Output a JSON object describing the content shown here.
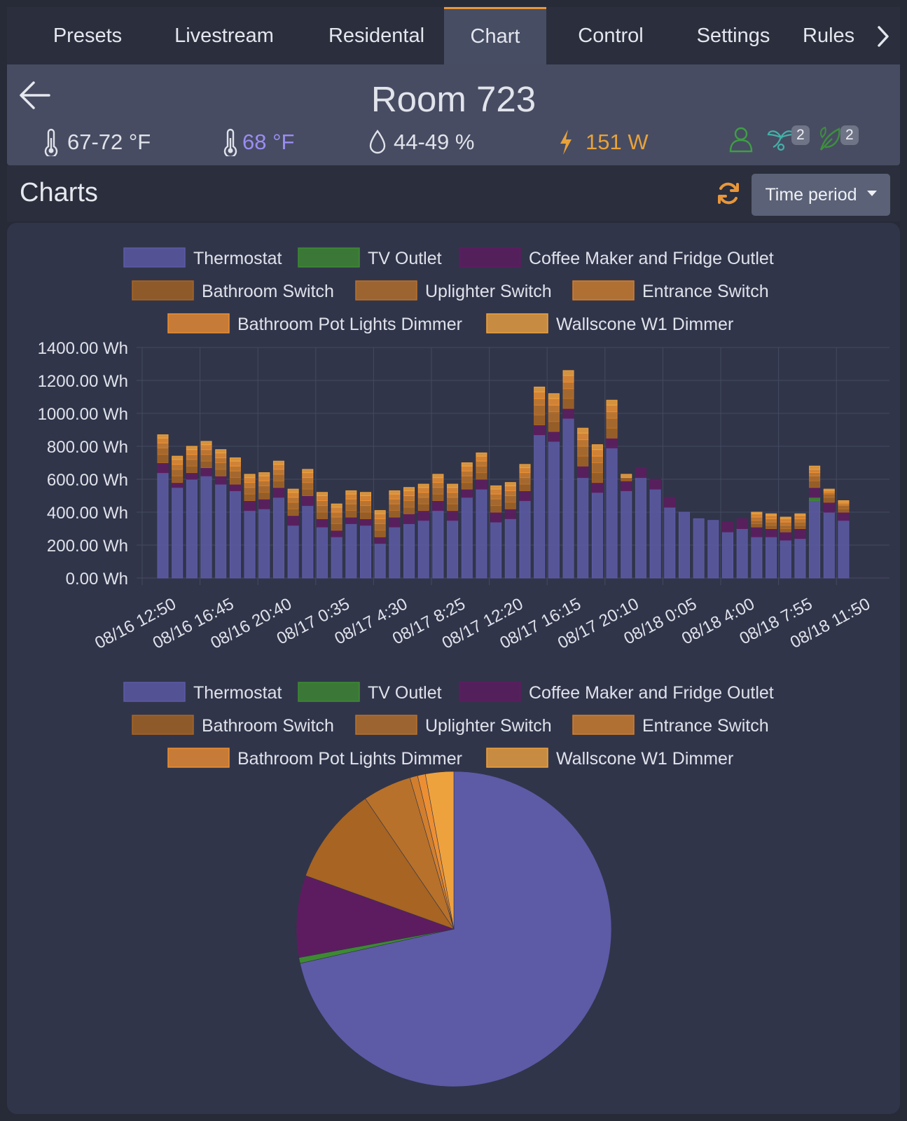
{
  "tabs": [
    {
      "label": "Presets",
      "active": false
    },
    {
      "label": "Livestream",
      "active": false
    },
    {
      "label": "Residental",
      "active": false
    },
    {
      "label": "Chart",
      "active": true
    },
    {
      "label": "Control",
      "active": false
    },
    {
      "label": "Settings",
      "active": false
    },
    {
      "label": "Rules",
      "active": false
    }
  ],
  "room": {
    "title": "Room 723",
    "temp_range": "67-72 °F",
    "setpoint": "68 °F",
    "humidity": "44-49 %",
    "power": "151 W",
    "fan_count": "2",
    "plant_count": "2"
  },
  "charts_header": {
    "title": "Charts",
    "time_period_label": "Time period"
  },
  "colors": {
    "accent": "#e8963a",
    "setpoint": "#9b8cf2",
    "power": "#e8a23a",
    "person_icon": "#3f9e45",
    "fan_icon": "#43b0a8",
    "plant_icon": "#3e8e3e"
  },
  "legend": [
    {
      "name": "Thermostat",
      "color": "#5d5aa6"
    },
    {
      "name": "TV Outlet",
      "color": "#3e8a32"
    },
    {
      "name": "Coffee Maker and Fridge Outlet",
      "color": "#5e1c60"
    },
    {
      "name": "Bathroom Switch",
      "color": "#a76422"
    },
    {
      "name": "Uplighter Switch",
      "color": "#b8712a"
    },
    {
      "name": "Entrance Switch",
      "color": "#d17f2e"
    },
    {
      "name": "Bathroom Pot Lights Dimmer",
      "color": "#ec8f33"
    },
    {
      "name": "Wallscone W1 Dimmer",
      "color": "#eea23e"
    }
  ],
  "chart_data": [
    {
      "type": "bar",
      "stacked": true,
      "y_tick_labels": [
        "0.00 Wh",
        "200.00 Wh",
        "400.00 Wh",
        "600.00 Wh",
        "800.00 Wh",
        "1000.00 Wh",
        "1200.00 Wh",
        "1400.00 Wh"
      ],
      "ylim": [
        0,
        1400
      ],
      "x_tick_labels": [
        "08/16 12:50",
        "08/16 16:45",
        "08/16 20:40",
        "08/17 0:35",
        "08/17 4:30",
        "08/17 8:25",
        "08/17 12:20",
        "08/17 16:15",
        "08/17 20:10",
        "08/18 0:05",
        "08/18 4:00",
        "08/18 7:55",
        "08/18 11:50"
      ],
      "grid": true,
      "legend_position": "top",
      "series": [
        {
          "name": "Thermostat",
          "values": [
            640,
            550,
            600,
            620,
            570,
            530,
            410,
            420,
            490,
            320,
            440,
            310,
            250,
            330,
            320,
            210,
            310,
            330,
            350,
            410,
            350,
            490,
            540,
            340,
            360,
            470,
            870,
            830,
            970,
            610,
            520,
            790,
            530,
            610,
            540,
            430,
            400,
            360,
            350,
            280,
            300,
            250,
            250,
            230,
            240,
            470,
            400,
            350
          ]
        },
        {
          "name": "TV Outlet",
          "values": [
            0,
            0,
            0,
            0,
            0,
            0,
            0,
            0,
            0,
            0,
            0,
            0,
            0,
            0,
            0,
            0,
            0,
            0,
            0,
            0,
            0,
            0,
            0,
            0,
            0,
            0,
            0,
            0,
            0,
            0,
            0,
            0,
            0,
            0,
            0,
            0,
            0,
            0,
            0,
            0,
            0,
            0,
            0,
            0,
            0,
            20,
            0,
            0
          ]
        },
        {
          "name": "Coffee Maker and Fridge Outlet",
          "values": [
            60,
            30,
            40,
            50,
            50,
            40,
            60,
            60,
            60,
            60,
            60,
            50,
            40,
            40,
            40,
            40,
            60,
            60,
            60,
            60,
            60,
            50,
            60,
            60,
            60,
            60,
            60,
            60,
            60,
            70,
            60,
            60,
            60,
            60,
            60,
            60,
            0,
            0,
            0,
            60,
            60,
            60,
            50,
            50,
            60,
            60,
            60,
            50
          ]
        },
        {
          "name": "Bathroom Switch",
          "values": [
            50,
            40,
            40,
            40,
            40,
            40,
            40,
            40,
            40,
            40,
            40,
            40,
            40,
            40,
            40,
            40,
            40,
            40,
            40,
            40,
            40,
            40,
            40,
            40,
            40,
            40,
            60,
            60,
            60,
            60,
            60,
            60,
            20,
            0,
            0,
            0,
            0,
            0,
            0,
            0,
            0,
            20,
            20,
            20,
            20,
            40,
            30,
            20
          ]
        },
        {
          "name": "Uplighter Switch",
          "values": [
            40,
            40,
            40,
            40,
            40,
            40,
            40,
            40,
            40,
            40,
            40,
            40,
            40,
            40,
            40,
            40,
            40,
            40,
            40,
            40,
            40,
            40,
            40,
            40,
            40,
            40,
            60,
            60,
            60,
            60,
            60,
            60,
            0,
            0,
            0,
            0,
            0,
            0,
            0,
            0,
            0,
            20,
            20,
            20,
            20,
            30,
            20,
            20
          ]
        },
        {
          "name": "Entrance Switch",
          "values": [
            30,
            30,
            30,
            30,
            30,
            30,
            30,
            30,
            30,
            30,
            30,
            30,
            30,
            30,
            30,
            30,
            30,
            30,
            30,
            30,
            30,
            30,
            30,
            30,
            30,
            30,
            40,
            40,
            40,
            40,
            40,
            40,
            0,
            0,
            0,
            0,
            0,
            0,
            0,
            0,
            0,
            20,
            20,
            20,
            20,
            20,
            10,
            10
          ]
        },
        {
          "name": "Bathroom Pot Lights Dimmer",
          "values": [
            30,
            30,
            30,
            30,
            30,
            30,
            30,
            30,
            30,
            30,
            30,
            30,
            30,
            30,
            30,
            30,
            30,
            30,
            30,
            30,
            30,
            30,
            30,
            30,
            30,
            30,
            40,
            40,
            40,
            40,
            40,
            40,
            0,
            0,
            0,
            0,
            0,
            0,
            0,
            0,
            0,
            20,
            20,
            20,
            20,
            20,
            10,
            10
          ]
        },
        {
          "name": "Wallscone W1 Dimmer",
          "values": [
            20,
            20,
            20,
            20,
            20,
            20,
            20,
            20,
            20,
            20,
            20,
            20,
            20,
            20,
            20,
            20,
            20,
            20,
            20,
            20,
            20,
            20,
            20,
            20,
            20,
            20,
            30,
            30,
            30,
            30,
            30,
            30,
            20,
            0,
            0,
            0,
            0,
            0,
            0,
            0,
            0,
            10,
            10,
            10,
            10,
            20,
            10,
            10
          ]
        }
      ]
    },
    {
      "type": "pie",
      "legend_position": "top",
      "slices": [
        {
          "name": "Thermostat",
          "value": 71.5
        },
        {
          "name": "TV Outlet",
          "value": 0.6
        },
        {
          "name": "Coffee Maker and Fridge Outlet",
          "value": 8.4
        },
        {
          "name": "Bathroom Switch",
          "value": 10.0
        },
        {
          "name": "Uplighter Switch",
          "value": 5.0
        },
        {
          "name": "Entrance Switch",
          "value": 0.8
        },
        {
          "name": "Bathroom Pot Lights Dimmer",
          "value": 0.8
        },
        {
          "name": "Wallscone W1 Dimmer",
          "value": 2.9
        }
      ]
    }
  ]
}
